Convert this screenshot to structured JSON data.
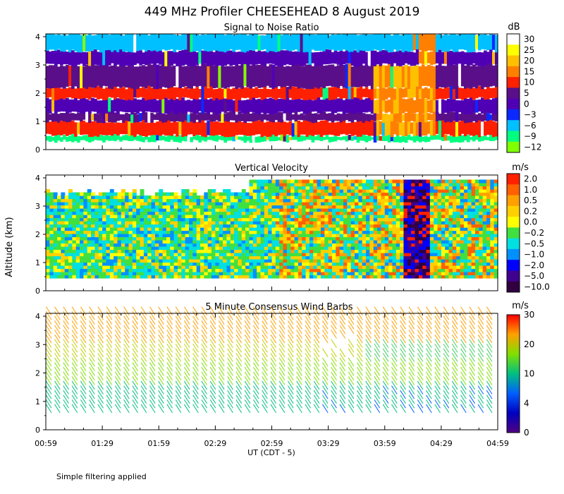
{
  "title": "449 MHz Profiler CHEESEHEAD  8 August 2019",
  "ylabel": "Altitude (km)",
  "xlabel": "UT  (CDT - 5)",
  "x_ticks": [
    "00:59",
    "01:29",
    "01:59",
    "02:29",
    "02:59",
    "03:29",
    "03:59",
    "04:29",
    "04:59"
  ],
  "y_ticks": [
    "0",
    "1",
    "2",
    "3",
    "4"
  ],
  "footnote": "Simple filtering applied",
  "chart_data": [
    {
      "type": "heatmap",
      "title": "Signal to Noise Ratio",
      "unit": "dB",
      "colorbar": {
        "labels": [
          "30",
          "25",
          "20",
          "15",
          "10",
          "5",
          "0",
          "−3",
          "−6",
          "−9",
          "−12"
        ],
        "colors": [
          "#ffffff",
          "#ffff00",
          "#ffc000",
          "#ff8000",
          "#ff2000",
          "#5a0f8a",
          "#5000b4",
          "#0a28ff",
          "#00c0ff",
          "#00ff80",
          "#80ff00"
        ]
      },
      "x": [
        "00:59",
        "04:59"
      ],
      "ylim": [
        0,
        4.1
      ],
      "layers": [
        {
          "y": [
            0.3,
            0.5
          ],
          "value": "−9"
        },
        {
          "y": [
            0.5,
            1.0
          ],
          "value": "10"
        },
        {
          "y": [
            1.0,
            1.3
          ],
          "value": "5"
        },
        {
          "y": [
            1.3,
            1.8
          ],
          "value": "0"
        },
        {
          "y": [
            1.8,
            2.2
          ],
          "value": "10"
        },
        {
          "y": [
            2.2,
            3.0
          ],
          "value": "5"
        },
        {
          "y": [
            3.0,
            3.5
          ],
          "value": "0"
        },
        {
          "y": [
            3.5,
            4.1
          ],
          "value": "−6"
        }
      ]
    },
    {
      "type": "heatmap",
      "title": "Vertical Velocity",
      "unit": "m/s",
      "colorbar": {
        "labels": [
          "2.0",
          "1.0",
          "0.5",
          "0.2",
          "0.0",
          "−0.2",
          "−0.5",
          "−1.0",
          "−2.0",
          "−5.0",
          "−10.0"
        ],
        "colors": [
          "#ff2000",
          "#ff6000",
          "#ffa000",
          "#ffd000",
          "#ffff00",
          "#40e040",
          "#00e0e0",
          "#0090ff",
          "#0000ff",
          "#400090",
          "#300040"
        ]
      },
      "x": [
        "00:59",
        "04:59"
      ],
      "ylim": [
        0,
        4.1
      ]
    },
    {
      "type": "wind_barbs",
      "title": "5 Minute Consensus Wind Barbs",
      "unit": "m/s",
      "colorbar": {
        "labels": [
          "30",
          "20",
          "10",
          "4",
          "0"
        ],
        "colors": [
          "#ff0000",
          "#ffa000",
          "#80e000",
          "#00c080",
          "#0060ff",
          "#0000c0",
          "#500080"
        ]
      },
      "x": [
        "00:59",
        "04:59"
      ],
      "ylim": [
        0,
        4.1
      ]
    }
  ]
}
